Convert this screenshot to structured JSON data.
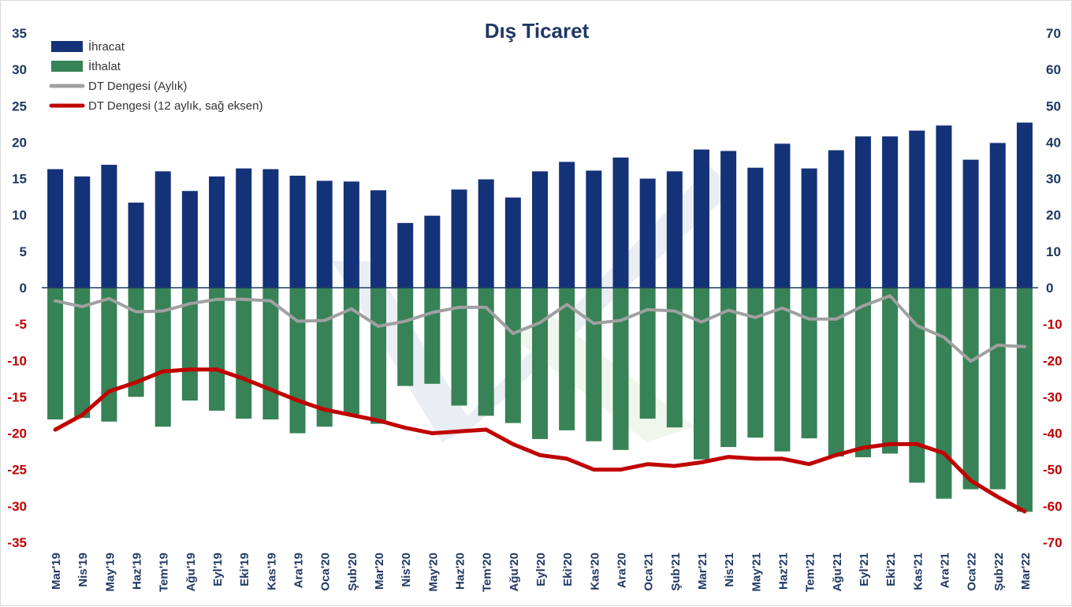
{
  "chart_data": {
    "type": "bar",
    "title": "Dış Ticaret",
    "categories": [
      "Mar'19",
      "Nis'19",
      "May'19",
      "Haz'19",
      "Tem'19",
      "Ağu'19",
      "Eyl'19",
      "Eki'19",
      "Kas'19",
      "Ara'19",
      "Oca'20",
      "Şub'20",
      "Mar'20",
      "Nis'20",
      "May'20",
      "Haz'20",
      "Tem'20",
      "Ağu'20",
      "Eyl'20",
      "Eki'20",
      "Kas'20",
      "Ara'20",
      "Oca'21",
      "Şub'21",
      "Mar'21",
      "Nis'21",
      "May'21",
      "Haz'21",
      "Tem'21",
      "Ağu'21",
      "Eyl'21",
      "Eki'21",
      "Kas'21",
      "Ara'21",
      "Oca'22",
      "Şub'22",
      "Mar'22"
    ],
    "series": [
      {
        "name": "İhracat",
        "type": "bar",
        "axis": "left",
        "color": "#143278",
        "values": [
          16.3,
          15.3,
          16.9,
          11.7,
          16.0,
          13.3,
          15.3,
          16.4,
          16.3,
          15.4,
          14.7,
          14.6,
          13.4,
          8.9,
          9.9,
          13.5,
          14.9,
          12.4,
          16.0,
          17.3,
          16.1,
          17.9,
          15.0,
          16.0,
          19.0,
          18.8,
          16.5,
          19.8,
          16.4,
          18.9,
          20.8,
          20.8,
          21.6,
          22.3,
          17.6,
          19.9,
          22.7
        ]
      },
      {
        "name": "İthalat",
        "type": "bar",
        "axis": "left",
        "color": "#378256",
        "values": [
          -18.1,
          -17.9,
          -18.4,
          -15.0,
          -19.1,
          -15.5,
          -16.9,
          -18.0,
          -18.1,
          -20.0,
          -19.1,
          -17.4,
          -18.7,
          -13.5,
          -13.2,
          -16.2,
          -17.6,
          -18.6,
          -20.8,
          -19.6,
          -21.1,
          -22.3,
          -18.0,
          -19.2,
          -23.6,
          -21.9,
          -20.6,
          -22.5,
          -20.7,
          -23.2,
          -23.3,
          -22.8,
          -26.8,
          -29.0,
          -27.7,
          -27.7,
          -30.8
        ]
      },
      {
        "name": "DT Dengesi (Aylık)",
        "type": "line",
        "axis": "left",
        "color": "#a0a0a0",
        "values": [
          -1.8,
          -2.6,
          -1.5,
          -3.3,
          -3.2,
          -2.2,
          -1.6,
          -1.6,
          -1.8,
          -4.6,
          -4.5,
          -2.9,
          -5.3,
          -4.6,
          -3.4,
          -2.7,
          -2.7,
          -6.3,
          -4.8,
          -2.3,
          -4.9,
          -4.5,
          -3.0,
          -3.2,
          -4.7,
          -3.1,
          -4.1,
          -2.8,
          -4.3,
          -4.3,
          -2.5,
          -1.1,
          -5.2,
          -6.8,
          -10.1,
          -7.9,
          -8.1
        ]
      },
      {
        "name": "DT Dengesi (12 aylık, sağ eksen)",
        "type": "line",
        "axis": "right",
        "color": "#c00000",
        "values": [
          -39.0,
          -35.0,
          -28.5,
          -26.0,
          -23.0,
          -22.5,
          -22.5,
          -25.0,
          -28.0,
          -31.0,
          -33.5,
          -35.0,
          -36.5,
          -38.5,
          -40.0,
          -39.5,
          -39.0,
          -43.0,
          -46.0,
          -47.0,
          -50.0,
          -50.0,
          -48.5,
          -49.0,
          -48.0,
          -46.5,
          -47.0,
          -47.0,
          -48.5,
          -46.0,
          -44.0,
          -43.0,
          -43.0,
          -45.5,
          -53.0,
          -57.5,
          -61.5
        ]
      }
    ],
    "ylim_left": [
      -35,
      35
    ],
    "ylim_right": [
      -70,
      70
    ],
    "yticks_left": [
      "35",
      "30",
      "25",
      "20",
      "15",
      "10",
      "5",
      "0",
      "-5",
      "-10",
      "-15",
      "-20",
      "-25",
      "-30",
      "-35"
    ],
    "yticks_right": [
      "70",
      "60",
      "50",
      "40",
      "30",
      "20",
      "10",
      "0",
      "-10",
      "-20",
      "-30",
      "-40",
      "-50",
      "-60",
      "-70"
    ],
    "left_axis_color": "#1f3864",
    "right_axis_positive_color": "#1f3864",
    "right_axis_negative_color": "#c00000",
    "left_axis_negative_color": "#c00000",
    "grid": false,
    "legend_placement": "top-left"
  }
}
